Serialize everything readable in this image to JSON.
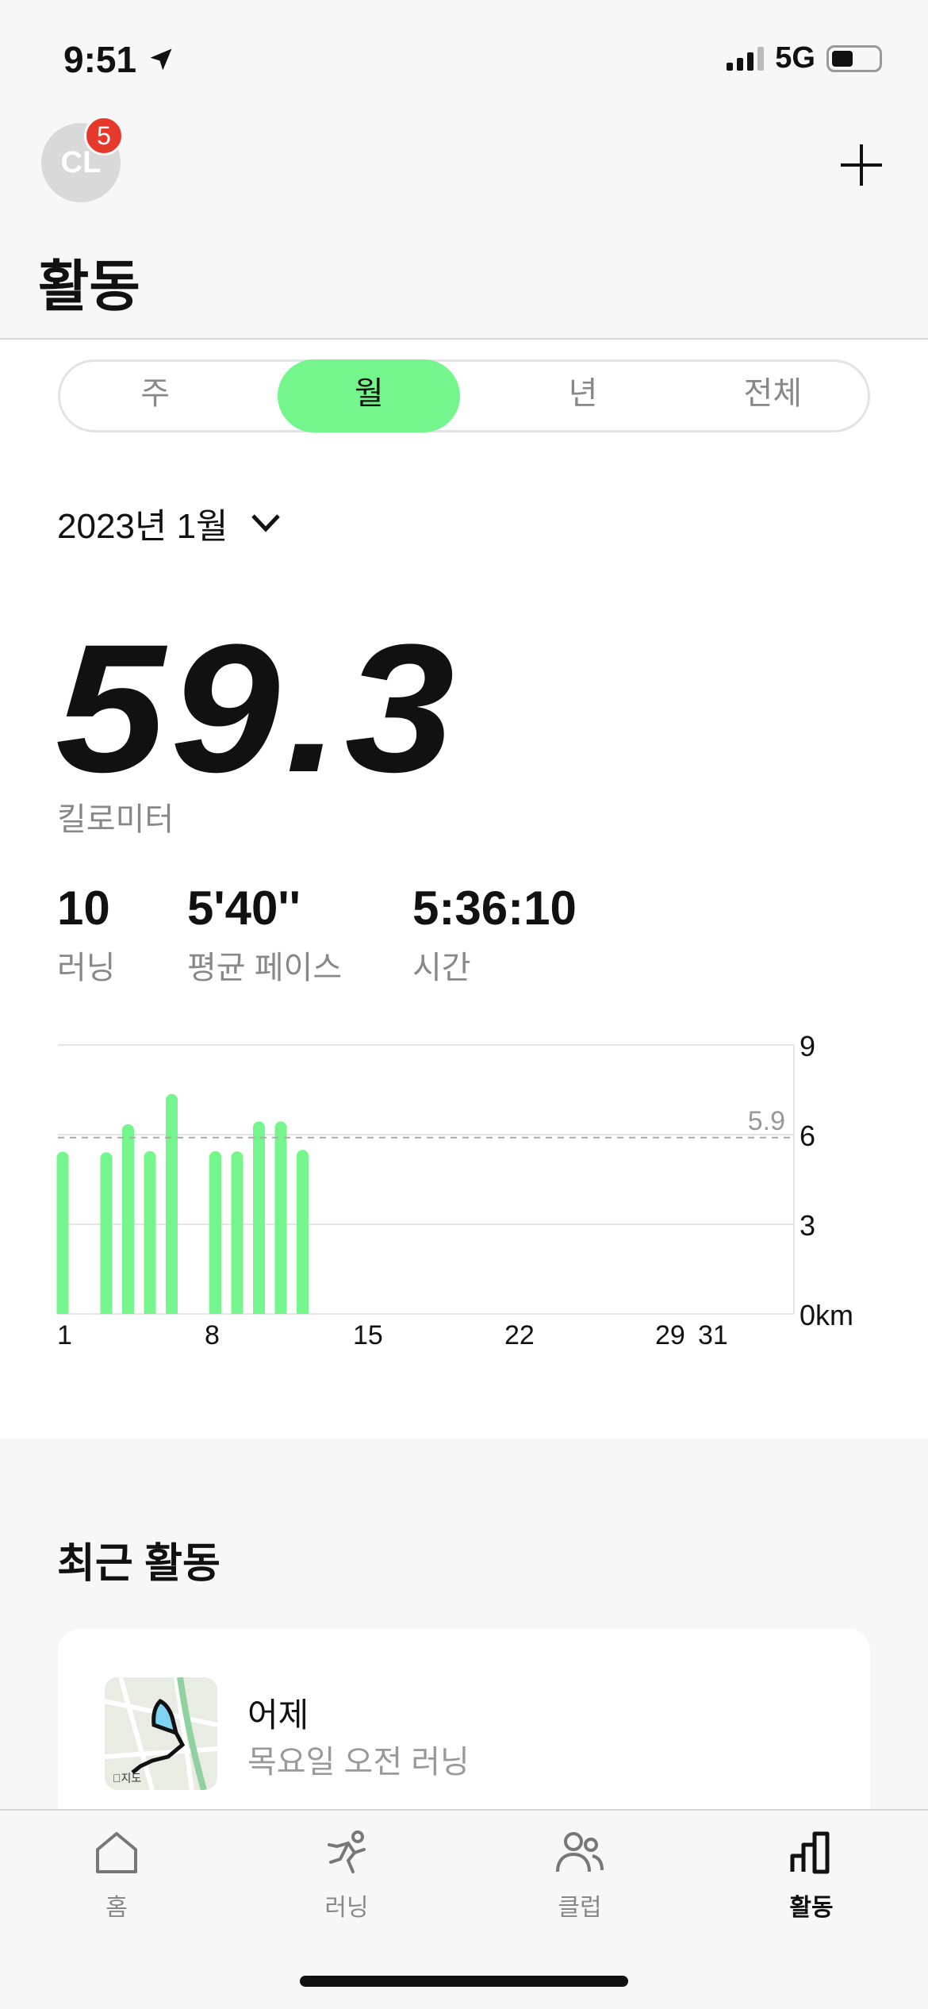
{
  "status_bar": {
    "time": "9:51",
    "network": "5G",
    "icons": [
      "location-arrow-icon",
      "signal-icon",
      "battery-icon"
    ]
  },
  "header": {
    "avatar_initials": "CL",
    "notification_count": "5",
    "title": "활동",
    "add_icon": "plus-icon"
  },
  "segments": {
    "items": [
      "주",
      "월",
      "년",
      "전체"
    ],
    "selected": "월"
  },
  "period": {
    "label": "2023년 1월",
    "icon": "chevron-down-icon"
  },
  "summary": {
    "distance": "59.3",
    "distance_unit": "킬로미터",
    "stats": [
      {
        "value": "10",
        "label": "러닝"
      },
      {
        "value": "5'40''",
        "label": "평균 페이스"
      },
      {
        "value": "5:36:10",
        "label": "시간"
      }
    ]
  },
  "chart_data": {
    "type": "bar",
    "x": [
      1,
      3,
      4,
      5,
      6,
      8,
      9,
      10,
      11,
      12
    ],
    "values": [
      5.43,
      5.41,
      6.35,
      5.45,
      7.36,
      5.45,
      5.44,
      6.44,
      6.44,
      5.49
    ],
    "xlim": [
      1,
      31
    ],
    "x_ticks": [
      "1",
      "8",
      "15",
      "22",
      "29",
      "31"
    ],
    "ylim": [
      0,
      9
    ],
    "y_ticks": [
      "0km",
      "3",
      "6",
      "9"
    ],
    "average": {
      "value": 5.9,
      "label": "5.9"
    },
    "bar_color": "#74f68c",
    "grid": true
  },
  "recent": {
    "title": "최근 활동",
    "items": [
      {
        "title": "어제",
        "subtitle": "목요일 오전 러닝",
        "map_label": "지도"
      }
    ]
  },
  "tabbar": {
    "items": [
      {
        "label": "홈",
        "icon": "home-icon"
      },
      {
        "label": "러닝",
        "icon": "running-icon"
      },
      {
        "label": "클럽",
        "icon": "club-icon"
      },
      {
        "label": "활동",
        "icon": "activity-icon",
        "active": true
      }
    ]
  },
  "colors": {
    "accent": "#74f68c",
    "badge": "#e5392b"
  }
}
